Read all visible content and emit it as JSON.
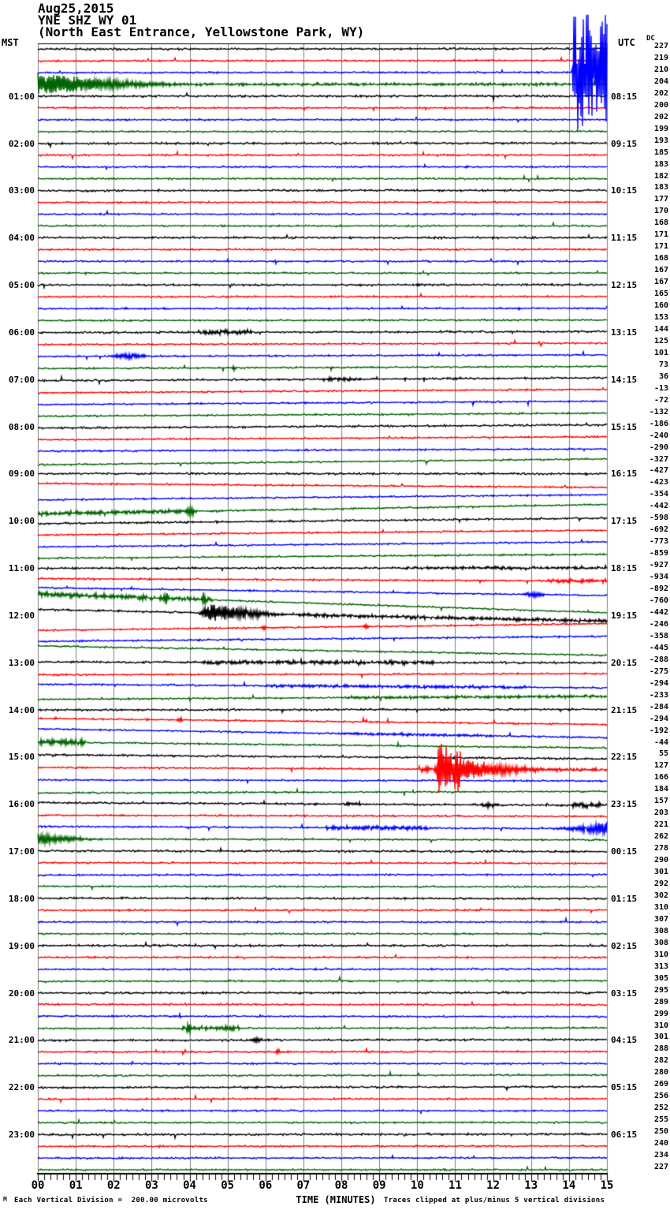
{
  "title": {
    "date": "Aug25,2015",
    "station": "YNE SHZ WY 01",
    "location": "(North East Entrance, Yellowstone Park, WY)"
  },
  "axes": {
    "left_header": "MST",
    "right_header": "UTC",
    "dc_header": "DC",
    "x_title": "TIME (MINUTES)",
    "x_ticks": [
      "00",
      "01",
      "02",
      "03",
      "04",
      "05",
      "06",
      "07",
      "08",
      "09",
      "10",
      "11",
      "12",
      "13",
      "14",
      "15"
    ]
  },
  "footer": {
    "left": "Each Vertical Division =  200.00 microvolts",
    "right": "Traces clipped at plus/minus 5 vertical divisions",
    "corner_mark": "M"
  },
  "left_labels": [
    {
      "line": 5,
      "text": "01:00"
    },
    {
      "line": 9,
      "text": "02:00"
    },
    {
      "line": 13,
      "text": "03:00"
    },
    {
      "line": 17,
      "text": "04:00"
    },
    {
      "line": 21,
      "text": "05:00"
    },
    {
      "line": 25,
      "text": "06:00"
    },
    {
      "line": 29,
      "text": "07:00"
    },
    {
      "line": 33,
      "text": "08:00"
    },
    {
      "line": 37,
      "text": "09:00"
    },
    {
      "line": 41,
      "text": "10:00"
    },
    {
      "line": 45,
      "text": "11:00"
    },
    {
      "line": 49,
      "text": "12:00"
    },
    {
      "line": 53,
      "text": "13:00"
    },
    {
      "line": 57,
      "text": "14:00"
    },
    {
      "line": 61,
      "text": "15:00"
    },
    {
      "line": 65,
      "text": "16:00"
    },
    {
      "line": 69,
      "text": "17:00"
    },
    {
      "line": 73,
      "text": "18:00"
    },
    {
      "line": 77,
      "text": "19:00"
    },
    {
      "line": 81,
      "text": "20:00"
    },
    {
      "line": 85,
      "text": "21:00"
    },
    {
      "line": 89,
      "text": "22:00"
    },
    {
      "line": 93,
      "text": "23:00"
    }
  ],
  "right_labels": [
    {
      "line": 5,
      "text": "08:15"
    },
    {
      "line": 9,
      "text": "09:15"
    },
    {
      "line": 13,
      "text": "10:15"
    },
    {
      "line": 17,
      "text": "11:15"
    },
    {
      "line": 21,
      "text": "12:15"
    },
    {
      "line": 25,
      "text": "13:15"
    },
    {
      "line": 29,
      "text": "14:15"
    },
    {
      "line": 33,
      "text": "15:15"
    },
    {
      "line": 37,
      "text": "16:15"
    },
    {
      "line": 41,
      "text": "17:15"
    },
    {
      "line": 45,
      "text": "18:15"
    },
    {
      "line": 49,
      "text": "19:15"
    },
    {
      "line": 53,
      "text": "20:15"
    },
    {
      "line": 57,
      "text": "21:15"
    },
    {
      "line": 61,
      "text": "22:15"
    },
    {
      "line": 65,
      "text": "23:15"
    },
    {
      "line": 69,
      "text": "00:15"
    },
    {
      "line": 73,
      "text": "01:15"
    },
    {
      "line": 77,
      "text": "02:15"
    },
    {
      "line": 81,
      "text": "03:15"
    },
    {
      "line": 85,
      "text": "04:15"
    },
    {
      "line": 89,
      "text": "05:15"
    },
    {
      "line": 93,
      "text": "06:15"
    }
  ],
  "chart_data": {
    "type": "line",
    "subtype": "helicorder-seismogram",
    "lines": 96,
    "minutes_per_line": 15,
    "x_range_minutes": [
      0,
      15
    ],
    "trace_color_cycle": [
      "#000000",
      "#ff0000",
      "#0000ff",
      "#006400"
    ],
    "grid_color": "#7f7f7f",
    "background": "#ffffff",
    "microvolts_per_division": 200.0,
    "clip_divisions": 5,
    "dc_values": [
      227,
      219,
      210,
      204,
      202,
      200,
      202,
      199,
      193,
      185,
      183,
      182,
      183,
      177,
      170,
      168,
      171,
      171,
      168,
      167,
      167,
      165,
      160,
      153,
      144,
      125,
      101,
      73,
      36,
      -13,
      -72,
      -132,
      -186,
      -240,
      -290,
      -327,
      -427,
      -423,
      -354,
      -442,
      -598,
      -692,
      -773,
      -859,
      -927,
      -934,
      -892,
      -760,
      -442,
      -246,
      -358,
      -445,
      -288,
      -275,
      -294,
      -233,
      -284,
      -294,
      -192,
      -44,
      55,
      127,
      166,
      184,
      157,
      203,
      221,
      262,
      278,
      290,
      301,
      292,
      302,
      310,
      307,
      308,
      308,
      310,
      313,
      305,
      295,
      289,
      299,
      310,
      301,
      288,
      282,
      280,
      269,
      256,
      252,
      255,
      250,
      240,
      234,
      227
    ],
    "events": [
      {
        "line": 3,
        "t0": 14.08,
        "t1": 15,
        "kind": "clip",
        "amp": 73
      },
      {
        "line": 4,
        "t0": 0,
        "t1": 3.8,
        "kind": "decay",
        "amp": 14
      },
      {
        "line": 4,
        "t0": 3.8,
        "t1": 15,
        "kind": "fuzz",
        "amp": 1.2
      },
      {
        "line": 25,
        "t0": 4.2,
        "t1": 5.7,
        "kind": "fuzz",
        "amp": 2.5
      },
      {
        "line": 27,
        "t0": 1.85,
        "t1": 2.95,
        "kind": "burst",
        "amp": 3.5
      },
      {
        "line": 28,
        "t0": 5.1,
        "t1": 5.25,
        "kind": "burst",
        "amp": 4
      },
      {
        "line": 29,
        "t0": 7.5,
        "t1": 8.4,
        "kind": "fuzz",
        "amp": 2
      },
      {
        "line": 29,
        "t0": 10.9,
        "t1": 11.15,
        "kind": "burst",
        "amp": 2.2
      },
      {
        "line": 40,
        "t0": 0,
        "t1": 4.2,
        "kind": "fuzz",
        "amp": 2.2
      },
      {
        "line": 40,
        "t0": 3.9,
        "t1": 4.15,
        "kind": "burst",
        "amp": 6
      },
      {
        "line": 45,
        "t0": 9.5,
        "t1": 15,
        "kind": "fuzz",
        "amp": 1.3
      },
      {
        "line": 46,
        "t0": 13.4,
        "t1": 15,
        "kind": "fuzz",
        "amp": 2.2
      },
      {
        "line": 47,
        "t0": 12.7,
        "t1": 13.4,
        "kind": "burst",
        "amp": 3
      },
      {
        "line": 48,
        "t0": 0,
        "t1": 4.6,
        "kind": "fuzz",
        "amp": 2.8
      },
      {
        "line": 48,
        "t0": 3.3,
        "t1": 3.45,
        "kind": "burst",
        "amp": 7
      },
      {
        "line": 48,
        "t0": 4.3,
        "t1": 4.45,
        "kind": "burst",
        "amp": 7
      },
      {
        "line": 49,
        "t0": 4.2,
        "t1": 6.8,
        "kind": "quake",
        "amp": 11
      },
      {
        "line": 49,
        "t0": 6.8,
        "t1": 15,
        "kind": "fuzz",
        "amp": 1.8
      },
      {
        "line": 50,
        "t0": 5.85,
        "t1": 6.05,
        "kind": "burst",
        "amp": 3
      },
      {
        "line": 50,
        "t0": 8.55,
        "t1": 8.75,
        "kind": "burst",
        "amp": 3
      },
      {
        "line": 53,
        "t0": 4.3,
        "t1": 10.5,
        "kind": "fuzz",
        "amp": 2
      },
      {
        "line": 55,
        "t0": 6,
        "t1": 13,
        "kind": "fuzz",
        "amp": 1.5
      },
      {
        "line": 56,
        "t0": 8,
        "t1": 15,
        "kind": "fuzz",
        "amp": 1.4
      },
      {
        "line": 58,
        "t0": 3.65,
        "t1": 3.85,
        "kind": "burst",
        "amp": 3
      },
      {
        "line": 59,
        "t0": 8,
        "t1": 12,
        "kind": "fuzz",
        "amp": 1.4
      },
      {
        "line": 60,
        "t0": 0.05,
        "t1": 1.25,
        "kind": "fuzz",
        "amp": 3.5
      },
      {
        "line": 62,
        "t0": 10.05,
        "t1": 10.52,
        "kind": "fuzz",
        "amp": 4
      },
      {
        "line": 62,
        "t0": 10.52,
        "t1": 11.15,
        "kind": "clip",
        "amp": 32
      },
      {
        "line": 62,
        "t0": 11.15,
        "t1": 13.6,
        "kind": "decay",
        "amp": 13
      },
      {
        "line": 62,
        "t0": 13.6,
        "t1": 15,
        "kind": "fuzz",
        "amp": 1.5
      },
      {
        "line": 65,
        "t0": 8.05,
        "t1": 8.5,
        "kind": "fuzz",
        "amp": 2
      },
      {
        "line": 65,
        "t0": 11.6,
        "t1": 12.15,
        "kind": "burst",
        "amp": 3
      },
      {
        "line": 65,
        "t0": 14.1,
        "t1": 14.85,
        "kind": "fuzz",
        "amp": 3.5
      },
      {
        "line": 67,
        "t0": 7.6,
        "t1": 10.3,
        "kind": "fuzz",
        "amp": 2.2
      },
      {
        "line": 67,
        "t0": 13.3,
        "t1": 15,
        "kind": "grow",
        "amp": 9
      },
      {
        "line": 68,
        "t0": 0,
        "t1": 1.7,
        "kind": "decay",
        "amp": 7
      },
      {
        "line": 84,
        "t0": 3.8,
        "t1": 5.3,
        "kind": "fuzz",
        "amp": 2.5
      },
      {
        "line": 84,
        "t0": 3.9,
        "t1": 4.05,
        "kind": "burst",
        "amp": 6
      },
      {
        "line": 85,
        "t0": 5.5,
        "t1": 6.05,
        "kind": "burst",
        "amp": 2.5
      },
      {
        "line": 86,
        "t0": 6.25,
        "t1": 6.45,
        "kind": "burst",
        "amp": 3
      }
    ]
  }
}
